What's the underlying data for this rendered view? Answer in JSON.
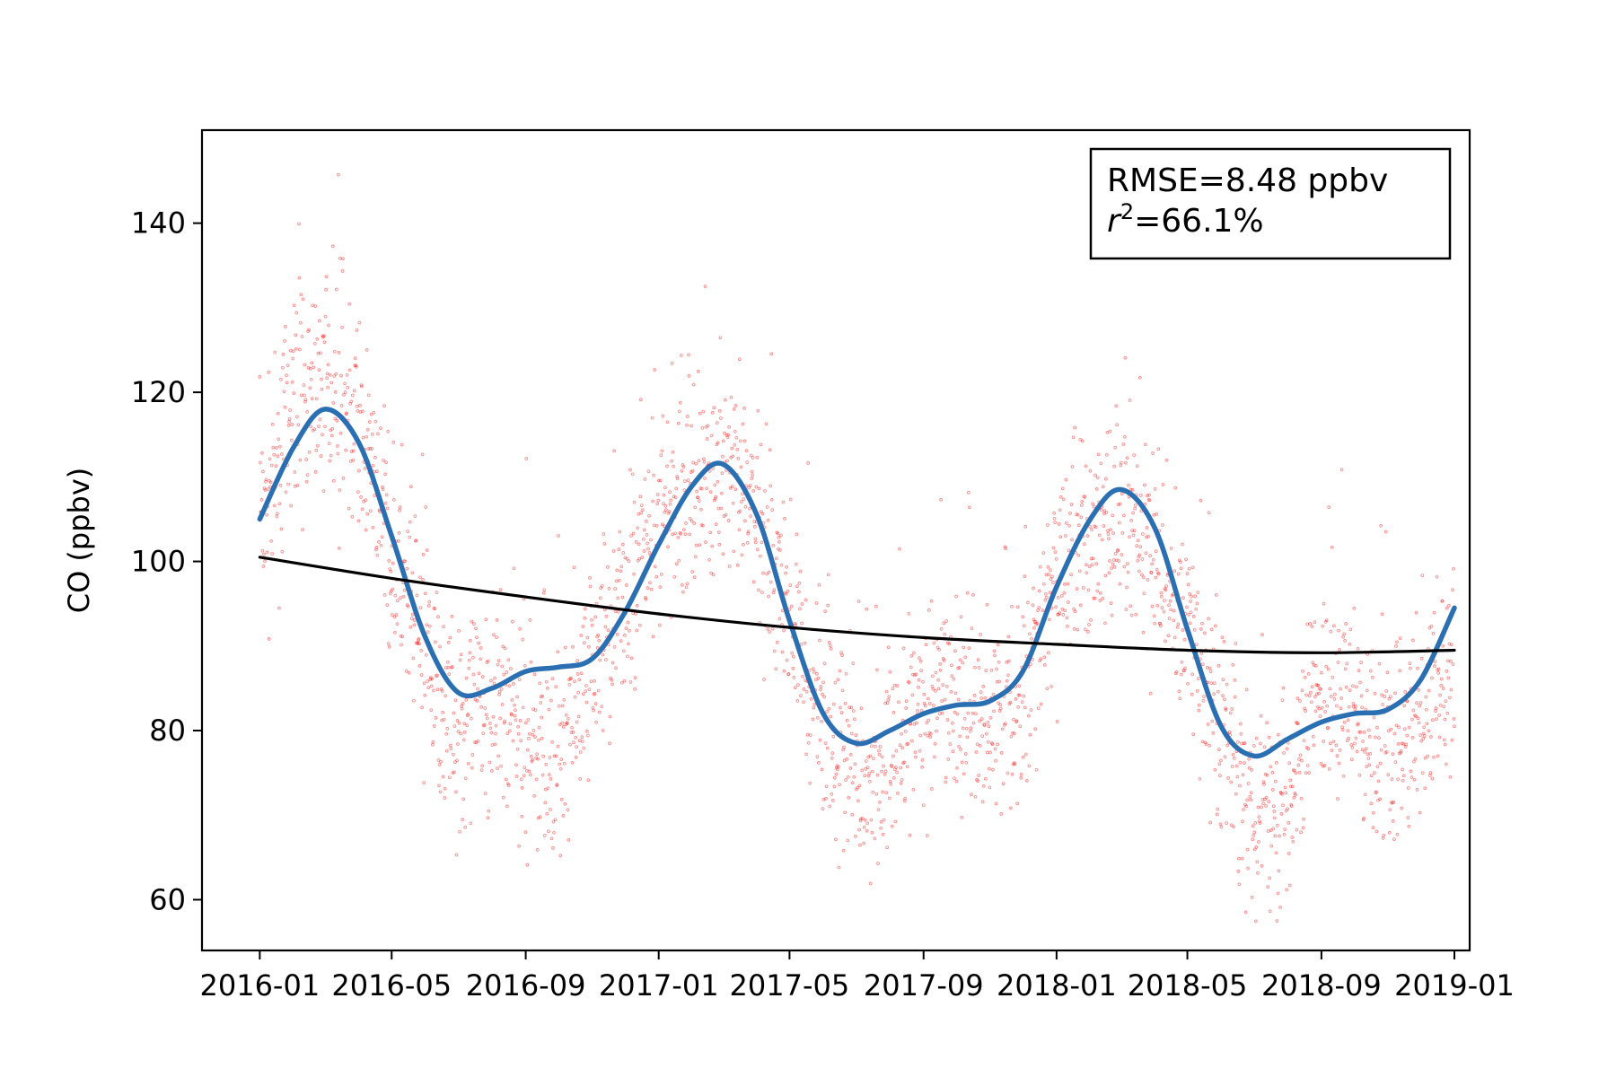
{
  "chart_data": {
    "type": "scatter",
    "title": "",
    "xlabel": "",
    "ylabel": "CO (ppbv)",
    "xlim": [
      "2015-11-09",
      "2019-01-15"
    ],
    "ylim": [
      54,
      151
    ],
    "x_ticks": [
      "2016-01",
      "2016-05",
      "2016-09",
      "2017-01",
      "2017-05",
      "2017-09",
      "2018-01",
      "2018-05",
      "2018-09",
      "2019-01"
    ],
    "y_ticks": [
      60,
      80,
      100,
      120,
      140
    ],
    "grid": false,
    "annotation": {
      "rmse": "RMSE=8.48 ppbv",
      "r2_base": "r",
      "r2_sup": "2",
      "r2_rest": "=66.1%",
      "position": "top-right"
    },
    "series": [
      {
        "kind": "scatter",
        "color": "#ff0000",
        "description_points_x": [
          "2016-01-01",
          "2016-02-01",
          "2016-03-01",
          "2016-04-01",
          "2016-05-01",
          "2016-06-01",
          "2016-07-01",
          "2016-08-01",
          "2016-09-01",
          "2016-10-01",
          "2016-11-01",
          "2016-12-01",
          "2017-01-01",
          "2017-02-01",
          "2017-03-01",
          "2017-04-01",
          "2017-05-01",
          "2017-06-01",
          "2017-07-01",
          "2017-08-01",
          "2017-09-01",
          "2017-10-01",
          "2017-11-01",
          "2017-12-01",
          "2018-01-01",
          "2018-02-01",
          "2018-03-01",
          "2018-04-01",
          "2018-05-01",
          "2018-06-01",
          "2018-07-01",
          "2018-08-01",
          "2018-09-01",
          "2018-10-01",
          "2018-11-01",
          "2018-12-01",
          "2019-01-01"
        ],
        "description_points_y": [
          104,
          118,
          122,
          116,
          100,
          88,
          80,
          83,
          80,
          76,
          88,
          95,
          104,
          108,
          111,
          106,
          94,
          82,
          74,
          77,
          84,
          82,
          82,
          84,
          98,
          102,
          106,
          100,
          92,
          80,
          70,
          72,
          84,
          82,
          78,
          80,
          88
        ]
      },
      {
        "kind": "line",
        "color": "#2b6fb3",
        "x": [
          "2016-01-01",
          "2016-02-01",
          "2016-03-01",
          "2016-04-01",
          "2016-05-01",
          "2016-06-01",
          "2016-07-01",
          "2016-08-01",
          "2016-09-01",
          "2016-10-01",
          "2016-11-01",
          "2016-12-01",
          "2017-01-01",
          "2017-02-01",
          "2017-03-01",
          "2017-04-01",
          "2017-05-01",
          "2017-06-01",
          "2017-07-01",
          "2017-08-01",
          "2017-09-01",
          "2017-10-01",
          "2017-11-01",
          "2017-12-01",
          "2018-01-01",
          "2018-02-01",
          "2018-03-01",
          "2018-04-01",
          "2018-05-01",
          "2018-06-01",
          "2018-07-01",
          "2018-08-01",
          "2018-09-01",
          "2018-10-01",
          "2018-11-01",
          "2018-12-01",
          "2019-01-01"
        ],
        "y": [
          105,
          113.5,
          118,
          114,
          103,
          91,
          84.5,
          85,
          87,
          87.5,
          88.5,
          94,
          102,
          109,
          111.5,
          105.5,
          93,
          82,
          78.5,
          80,
          82,
          83,
          83.5,
          87,
          97,
          105,
          108.5,
          104,
          92,
          80.5,
          77,
          79,
          81,
          82,
          82.5,
          86,
          94.5
        ]
      },
      {
        "kind": "line",
        "color": "#000000",
        "x": [
          "2016-01-01",
          "2016-05-01",
          "2016-09-01",
          "2017-01-01",
          "2017-05-01",
          "2017-09-01",
          "2018-01-01",
          "2018-05-01",
          "2018-09-01",
          "2019-01-01"
        ],
        "y": [
          100.5,
          98,
          95.8,
          93.8,
          92.2,
          91,
          90.2,
          89.5,
          89.2,
          89.5
        ]
      }
    ]
  }
}
